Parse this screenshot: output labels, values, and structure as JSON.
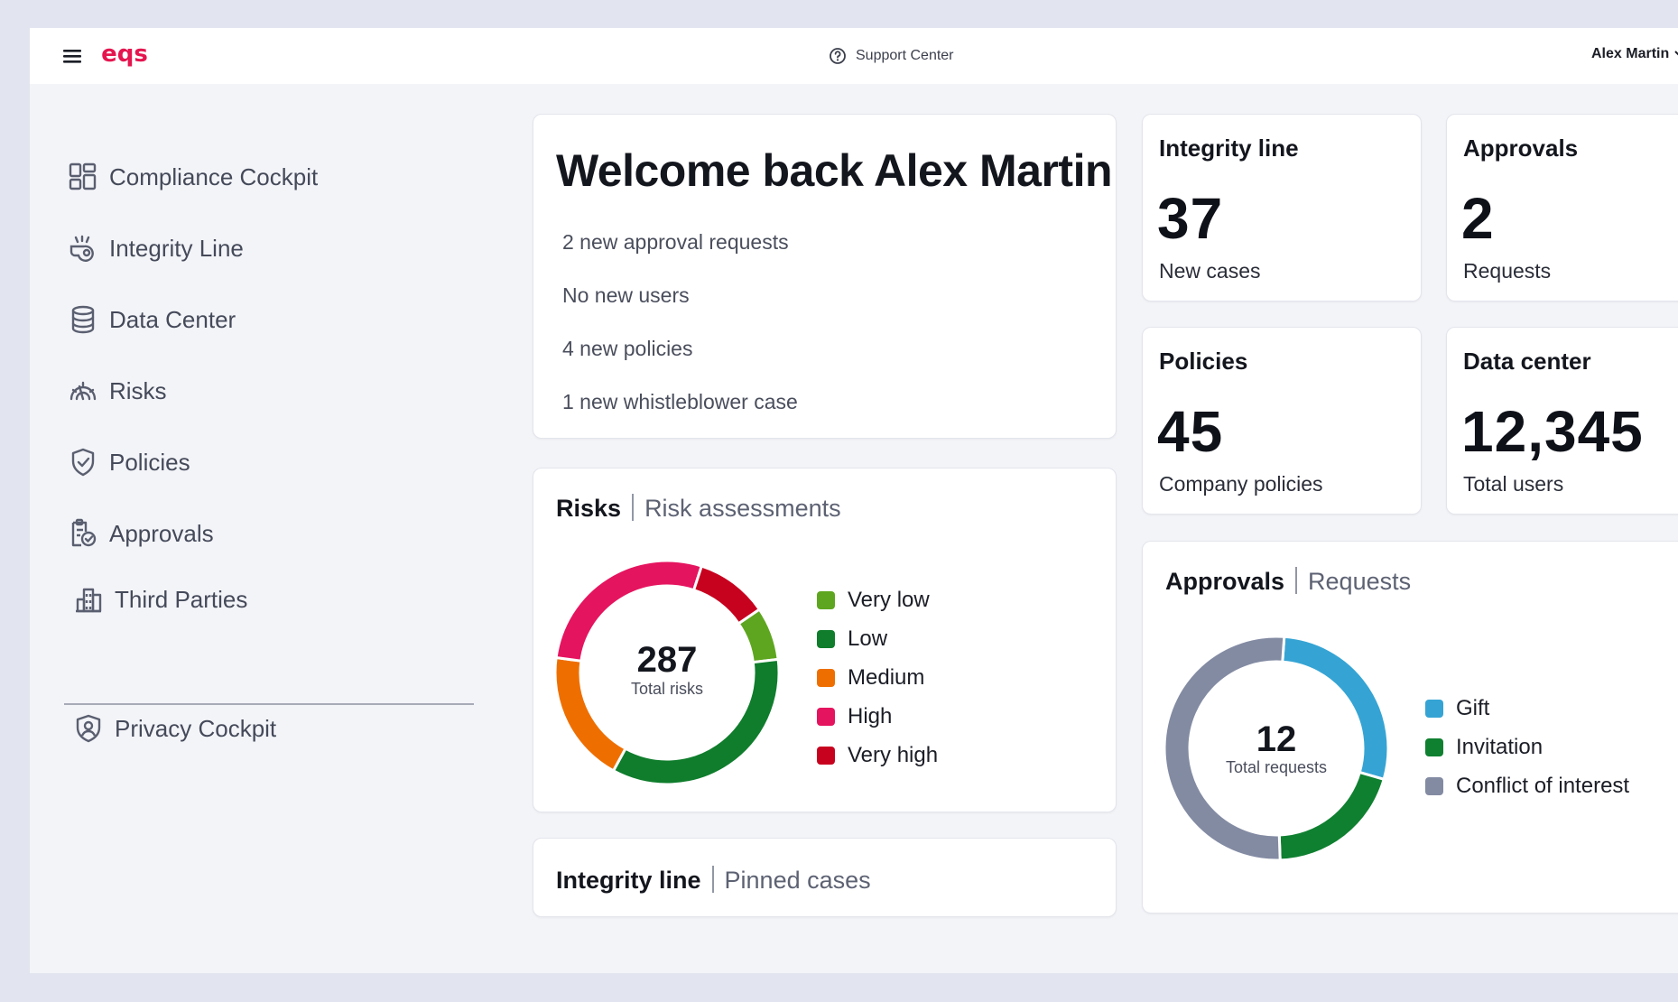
{
  "header": {
    "logo_text": "eqs",
    "support_label": "Support Center",
    "user_name": "Alex Martin"
  },
  "sidebar": {
    "items": [
      {
        "label": "Compliance Cockpit",
        "icon": "dashboard-grid-icon"
      },
      {
        "label": "Integrity Line",
        "icon": "whistle-icon"
      },
      {
        "label": "Data Center",
        "icon": "database-icon"
      },
      {
        "label": "Risks",
        "icon": "gauge-icon"
      },
      {
        "label": "Policies",
        "icon": "shield-check-icon"
      },
      {
        "label": "Approvals",
        "icon": "clipboard-check-icon"
      },
      {
        "label": "Third Parties",
        "icon": "buildings-icon"
      }
    ],
    "secondary": {
      "label": "Privacy Cockpit",
      "icon": "privacy-shield-icon"
    }
  },
  "welcome": {
    "title": "Welcome back Alex Martin",
    "lines": [
      "2 new approval requests",
      "No new users",
      "4 new policies",
      "1 new whistleblower case"
    ]
  },
  "stats": {
    "integrity": {
      "title": "Integrity line",
      "value": "37",
      "label": "New cases"
    },
    "approvals": {
      "title": "Approvals",
      "value": "2",
      "label": "Requests"
    },
    "policies": {
      "title": "Policies",
      "value": "45",
      "label": "Company policies"
    },
    "datacenter": {
      "title": "Data center",
      "value": "12,345",
      "label": "Total users"
    }
  },
  "risks": {
    "title": "Risks",
    "subtitle": "Risk assessments",
    "center_value": "287",
    "center_label": "Total risks",
    "chart_data": {
      "type": "pie",
      "categories": [
        "Very low",
        "Low",
        "Medium",
        "High",
        "Very high"
      ],
      "values": [
        22,
        100,
        55,
        80,
        30
      ],
      "colors": [
        "#5ea61f",
        "#0f7d2c",
        "#ee6f00",
        "#e5145f",
        "#c7021f"
      ]
    }
  },
  "approvals_chart": {
    "title": "Approvals",
    "subtitle": "Requests",
    "center_value": "12",
    "center_label": "Total requests",
    "chart_data": {
      "type": "pie",
      "categories": [
        "Gift",
        "Invitation",
        "Conflict of interest"
      ],
      "values": [
        3.4,
        2.4,
        6.2
      ],
      "colors": [
        "#35a4d4",
        "#0f8030",
        "#838ba3"
      ]
    }
  },
  "integrity_pinned": {
    "title": "Integrity line",
    "subtitle": "Pinned cases"
  },
  "colors": {
    "brand": "#e4154f",
    "background": "#f3f4f8"
  }
}
